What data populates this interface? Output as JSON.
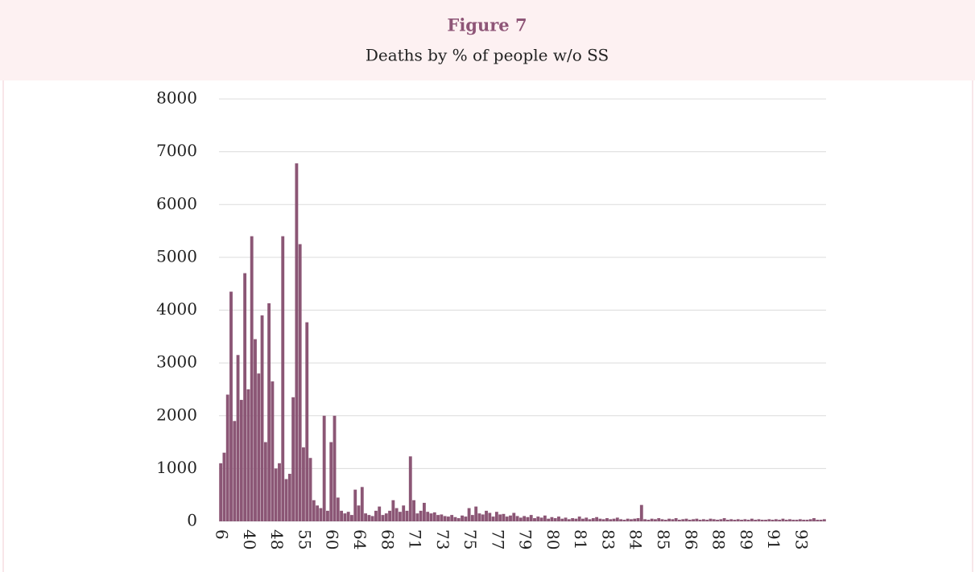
{
  "chart_data": {
    "type": "bar",
    "title": "Figure 7",
    "subtitle": "Deaths by % of people w/o SS",
    "categories": [
      "6",
      null,
      null,
      null,
      null,
      null,
      null,
      null,
      "40",
      null,
      null,
      null,
      null,
      null,
      null,
      null,
      "48",
      null,
      null,
      null,
      null,
      null,
      null,
      null,
      "55",
      null,
      null,
      null,
      null,
      null,
      null,
      null,
      "60",
      null,
      null,
      null,
      null,
      null,
      null,
      null,
      "64",
      null,
      null,
      null,
      null,
      null,
      null,
      null,
      "68",
      null,
      null,
      null,
      null,
      null,
      null,
      null,
      "71",
      null,
      null,
      null,
      null,
      null,
      null,
      null,
      "73",
      null,
      null,
      null,
      null,
      null,
      null,
      null,
      "75",
      null,
      null,
      null,
      null,
      null,
      null,
      null,
      "77",
      null,
      null,
      null,
      null,
      null,
      null,
      null,
      "79",
      null,
      null,
      null,
      null,
      null,
      null,
      null,
      "80",
      null,
      null,
      null,
      null,
      null,
      null,
      null,
      "81",
      null,
      null,
      null,
      null,
      null,
      null,
      null,
      "83",
      null,
      null,
      null,
      null,
      null,
      null,
      null,
      "84",
      null,
      null,
      null,
      null,
      null,
      null,
      null,
      "85",
      null,
      null,
      null,
      null,
      null,
      null,
      null,
      "86",
      null,
      null,
      null,
      null,
      null,
      null,
      null,
      "88",
      null,
      null,
      null,
      null,
      null,
      null,
      null,
      "89",
      null,
      null,
      null,
      null,
      null,
      null,
      null,
      "91",
      null,
      null,
      null,
      null,
      null,
      null,
      null,
      "93",
      null,
      null,
      null,
      null,
      null,
      null,
      null
    ],
    "values": [
      1100,
      1300,
      2400,
      4350,
      1900,
      3150,
      2300,
      4700,
      2500,
      5400,
      3450,
      2800,
      3900,
      1500,
      4130,
      2650,
      1000,
      1100,
      5400,
      800,
      900,
      2350,
      6780,
      5250,
      1400,
      3770,
      1200,
      400,
      300,
      250,
      2000,
      200,
      1500,
      2000,
      450,
      200,
      150,
      180,
      120,
      600,
      300,
      650,
      150,
      120,
      100,
      200,
      280,
      120,
      150,
      200,
      400,
      250,
      180,
      300,
      200,
      1230,
      400,
      150,
      200,
      350,
      180,
      150,
      170,
      120,
      130,
      100,
      90,
      120,
      80,
      60,
      110,
      90,
      250,
      120,
      280,
      150,
      130,
      200,
      160,
      90,
      180,
      130,
      140,
      90,
      110,
      160,
      100,
      70,
      100,
      80,
      120,
      60,
      90,
      70,
      110,
      50,
      80,
      60,
      90,
      50,
      70,
      40,
      60,
      50,
      90,
      50,
      70,
      40,
      60,
      80,
      50,
      40,
      60,
      40,
      50,
      70,
      40,
      30,
      50,
      40,
      50,
      60,
      310,
      40,
      30,
      50,
      40,
      60,
      40,
      30,
      50,
      40,
      60,
      30,
      40,
      50,
      30,
      40,
      50,
      30,
      40,
      30,
      50,
      40,
      30,
      40,
      60,
      30,
      40,
      30,
      40,
      30,
      40,
      30,
      50,
      30,
      40,
      30,
      30,
      40,
      30,
      40,
      30,
      50,
      30,
      40,
      30,
      30,
      40,
      30,
      30,
      40,
      60,
      30,
      30,
      40
    ],
    "color": "#8b5675",
    "ylim": [
      0,
      8000
    ],
    "yticks": [
      0,
      1000,
      2000,
      3000,
      4000,
      5000,
      6000,
      7000,
      8000
    ],
    "grid": true
  }
}
